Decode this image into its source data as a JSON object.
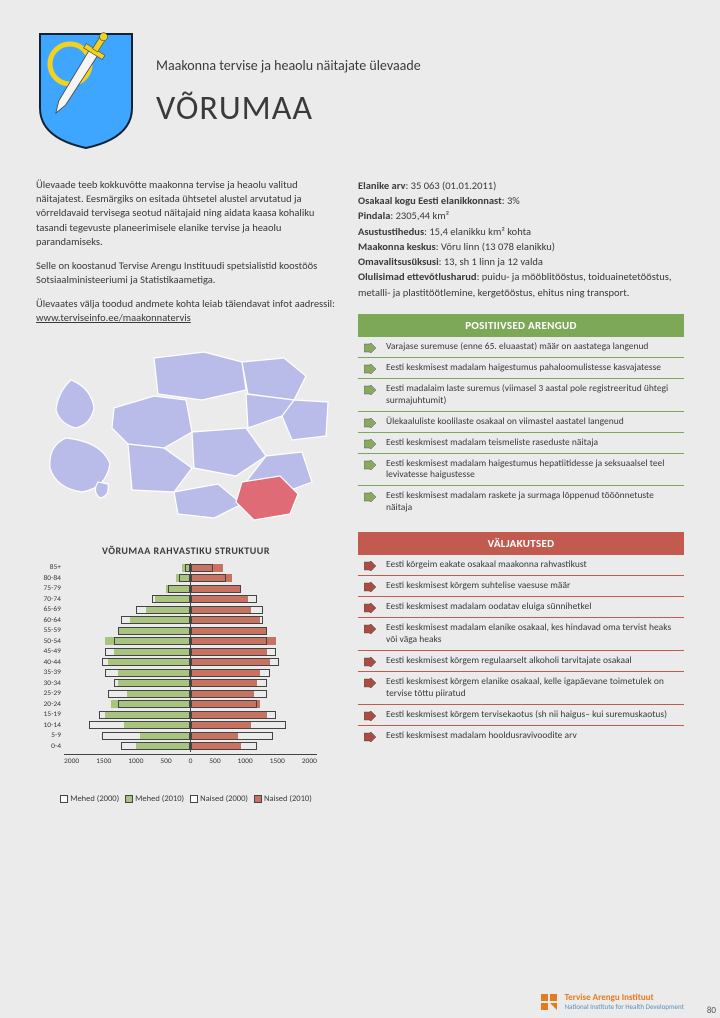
{
  "header": {
    "subtitle": "Maakonna tervise ja heaolu näitajate ülevaade",
    "title": "VÕRUMAA"
  },
  "crest": {
    "shield_fill": "#3ea6ff",
    "ring_stroke": "#f2d21f",
    "sword_fill": "#f0f0f0",
    "sword_hilt": "#f2d21f"
  },
  "intro": {
    "p1": "Ülevaade teeb kokkuvõtte maakonna tervise ja heaolu valitud näitajatest. Eesmärgiks on esitada ühtsetel alustel arvutatud ja võrreldavaid tervisega seotud näitajaid ning aidata kaasa kohaliku tasandi tegevuste planeerimisele elanike tervise ja heaolu parandamiseks.",
    "p2": "Selle on koostanud Tervise Arengu Instituudi spetsialistid koostöös Sotsiaalministeeriumi ja Statistikaametiga.",
    "p3_pre": "Ülevaates välja toodud andmete kohta leiab täiendavat infot aadressil: ",
    "p3_link": "www.terviseinfo.ee/maakonnatervis"
  },
  "map": {
    "base_fill": "#b9bbe8",
    "highlight_fill": "#de6b75",
    "stroke": "#ffffff"
  },
  "pyramid": {
    "title": "VÕRUMAA RAHVASTIKU STRUKTUUR",
    "max": 2000,
    "groups": [
      "85+",
      "80-84",
      "75-79",
      "70-74",
      "65-69",
      "60-64",
      "55-59",
      "50-54",
      "45-49",
      "40-44",
      "35-39",
      "30-34",
      "25-29",
      "20-24",
      "15-19",
      "10-14",
      "5-9",
      "0-4"
    ],
    "mehed2010": [
      120,
      220,
      380,
      550,
      700,
      950,
      1150,
      1350,
      1200,
      1300,
      1150,
      1150,
      1000,
      1250,
      1350,
      1050,
      800,
      850
    ],
    "mehed2000": [
      80,
      180,
      350,
      600,
      850,
      1100,
      1150,
      1200,
      1350,
      1400,
      1350,
      1200,
      1300,
      1150,
      1450,
      1600,
      1400,
      1100
    ],
    "naised2010": [
      500,
      650,
      800,
      900,
      950,
      1100,
      1200,
      1350,
      1200,
      1250,
      1100,
      1050,
      1000,
      1100,
      1200,
      950,
      750,
      800
    ],
    "naised2000": [
      350,
      550,
      800,
      1050,
      1150,
      1150,
      1200,
      1200,
      1350,
      1400,
      1250,
      1200,
      1200,
      1050,
      1350,
      1500,
      1300,
      1050
    ],
    "axis": [
      "2000",
      "1500",
      "1000",
      "500",
      "0",
      "500",
      "1000",
      "1500",
      "2000"
    ],
    "colors": {
      "mehed2010": "#a9c47f",
      "naised2010": "#c87362",
      "outline": "#444444"
    },
    "legend": [
      {
        "label": "Mehed (2000)",
        "fill": "#ffffff"
      },
      {
        "label": "Mehed (2010)",
        "fill": "#a9c47f"
      },
      {
        "label": "Naised (2000)",
        "fill": "#ffffff"
      },
      {
        "label": "Naised (2010)",
        "fill": "#c87362"
      }
    ]
  },
  "facts": [
    {
      "k": "Elanike arv",
      "v": ": 35 063 (01.01.2011)"
    },
    {
      "k": "Osakaal kogu Eesti elanikkonnast",
      "v": ": 3%"
    },
    {
      "k": "Pindala",
      "v": ": 2305,44 km²"
    },
    {
      "k": "Asustustihedus",
      "v": ": 15,4 elanikku km² kohta"
    },
    {
      "k": "Maakonna keskus",
      "v": ": Võru linn (13 078 elanikku)"
    },
    {
      "k": "Omavalitsusüksusi",
      "v": ": 13, sh 1 linn ja 12 valda"
    },
    {
      "k": "Olulisimad ettevõtlusharud",
      "v": ": puidu- ja mööblitööstus, toiduainetetööstus, metalli- ja plastitöötlemine, kergetööstus, ehitus ning transport."
    }
  ],
  "positives": {
    "title": "POSITIIVSED ARENGUD",
    "color": "#7da858",
    "arrow_fill": "#8aa864",
    "items": [
      "Varajase suremuse (enne 65. eluaastat) määr on aastatega langenud",
      "Eesti keskmisest madalam haigestumus pahaloomulistesse kasvajatesse",
      "Eesti madalaim laste suremus (viimasel 3 aastal pole registreeritud ühtegi surmajuhtumit)",
      "Ülekaaluliste koolilaste osakaal on viimastel aastatel langenud",
      "Eesti keskmisest madalam teismeliste raseduste näitaja",
      "Eesti keskmisest madalam haigestumus hepatiitidesse ja seksuaalsel teel levivatesse haigustesse",
      "Eesti keskmisest madalam raskete ja surmaga lõppenud tööõnnetuste näitaja"
    ]
  },
  "challenges": {
    "title": "VÄLJAKUTSED",
    "color": "#c35a4f",
    "arrow_fill": "#a84d44",
    "items": [
      "Eesti kõrgeim eakate osakaal maakonna rahvastikust",
      "Eesti keskmisest kõrgem suhtelise vaesuse määr",
      "Eesti keskmisest madalam oodatav eluiga sünnihetkel",
      "Eesti keskmisest madalam elanike osakaal, kes hindavad oma tervist heaks või väga heaks",
      "Eesti keskmisest kõrgem regulaarselt alkoholi tarvitajate osakaal",
      "Eesti keskmisest kõrgem elanike osakaal, kelle igapäevane toimetulek on tervise tõttu piiratud",
      "Eesti keskmisest kõrgem tervisekaotus (sh nii haigus– kui suremuskaotus)",
      "Eesti keskmisest madalam hooldusravivoodite arv"
    ]
  },
  "footer": {
    "logo_color": "#e37b1f",
    "main": "Tervise Arengu Instituut",
    "sub": "National Institute for Health Development"
  },
  "page_num": "80"
}
